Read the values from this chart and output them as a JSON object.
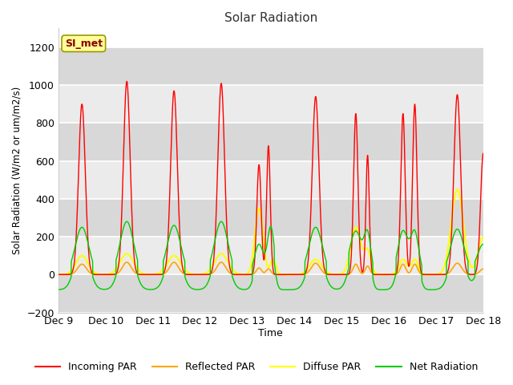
{
  "title": "Solar Radiation",
  "ylabel": "Solar Radiation (W/m2 or um/m2/s)",
  "xlabel": "Time",
  "ylim": [
    -200,
    1300
  ],
  "yticks": [
    -200,
    0,
    200,
    400,
    600,
    800,
    1000,
    1200
  ],
  "x_tick_labels": [
    "Dec 9",
    "Dec 10",
    "Dec 11",
    "Dec 12",
    "Dec 13",
    "Dec 14",
    "Dec 15",
    "Dec 16",
    "Dec 17",
    "Dec 18"
  ],
  "annotation_text": "SI_met",
  "annotation_color": "#8B0000",
  "annotation_bg": "#FFFF99",
  "bg_color_light": "#EBEBEB",
  "bg_color_dark": "#D8D8D8",
  "grid_color": "#CCCCCC",
  "legend_entries": [
    "Incoming PAR",
    "Reflected PAR",
    "Diffuse PAR",
    "Net Radiation"
  ],
  "legend_colors": [
    "red",
    "orange",
    "yellow",
    "#00CC00"
  ],
  "line_colors": {
    "incoming": "red",
    "reflected": "orange",
    "diffuse": "yellow",
    "net": "#00CC00"
  }
}
